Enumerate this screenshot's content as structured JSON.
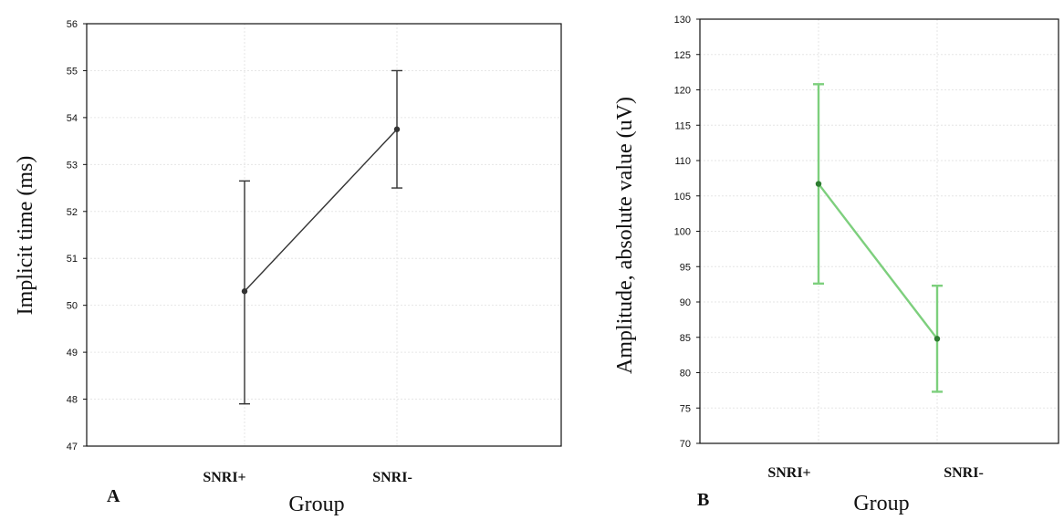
{
  "chart_data": [
    {
      "type": "line",
      "panel_label": "A",
      "title": "",
      "xlabel": "Group",
      "ylabel": "Implicit time (ms)",
      "categories": [
        "SNRI+",
        "SNRI-"
      ],
      "series": [
        {
          "values": [
            50.3,
            53.75
          ],
          "error_low": [
            47.9,
            52.5
          ],
          "error_high": [
            52.65,
            55.0
          ]
        }
      ],
      "ylim": [
        47,
        56
      ],
      "yticks": [
        47,
        48,
        49,
        50,
        51,
        52,
        53,
        54,
        55,
        56
      ],
      "grid": "on",
      "color": "#333333"
    },
    {
      "type": "line",
      "panel_label": "B",
      "title": "",
      "xlabel": "Group",
      "ylabel": "Amplitude, absolute value (uV)",
      "categories": [
        "SNRI+",
        "SNRI-"
      ],
      "series": [
        {
          "values": [
            106.7,
            84.8
          ],
          "error_low": [
            92.6,
            77.3
          ],
          "error_high": [
            120.8,
            92.3
          ]
        }
      ],
      "ylim": [
        70,
        130
      ],
      "yticks": [
        70,
        75,
        80,
        85,
        90,
        95,
        100,
        105,
        110,
        115,
        120,
        125,
        130
      ],
      "grid": "on",
      "color": "#7dcf7d",
      "point_color": "#2e7d32"
    }
  ]
}
